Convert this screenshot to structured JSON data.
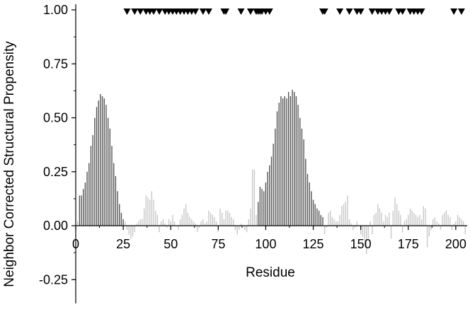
{
  "chart_data": {
    "type": "bar",
    "title": "",
    "xlabel": "Residue",
    "ylabel": "Neighbor Corrected Structural Propensity",
    "xlim": [
      0,
      206
    ],
    "ylim": [
      -0.36,
      1.0
    ],
    "x_ticks": [
      0,
      25,
      50,
      75,
      100,
      125,
      150,
      175,
      200
    ],
    "y_ticks": [
      -0.25,
      0.0,
      0.25,
      0.5,
      0.75,
      1.0
    ],
    "x_tick_labels": [
      "0",
      "25",
      "50",
      "75",
      "100",
      "125",
      "150",
      "175",
      "200"
    ],
    "y_tick_labels": [
      "-0.25",
      "0.00",
      "0.25",
      "0.50",
      "0.75",
      "1.00"
    ],
    "grid": false,
    "legend": "none",
    "colors": {
      "helix": "#555555",
      "other": "#c8c8c8",
      "marker": "#000000"
    },
    "series": [
      {
        "color": "#555555",
        "x": [
          2,
          3,
          4,
          5,
          6,
          7,
          8,
          9,
          10,
          11,
          12,
          13,
          14,
          15,
          16,
          17,
          18,
          19,
          20,
          21,
          22,
          23,
          24,
          25,
          96,
          97,
          98,
          99,
          100,
          101,
          102,
          103,
          104,
          105,
          106,
          107,
          108,
          109,
          110,
          111,
          112,
          113,
          114,
          115,
          116,
          117,
          118,
          119,
          120,
          121,
          122,
          123,
          124,
          125,
          126,
          127,
          128,
          129,
          130
        ],
        "values": [
          0.14,
          0.14,
          0.17,
          0.2,
          0.25,
          0.29,
          0.37,
          0.42,
          0.5,
          0.55,
          0.58,
          0.61,
          0.6,
          0.59,
          0.56,
          0.5,
          0.45,
          0.37,
          0.29,
          0.23,
          0.16,
          0.1,
          0.06,
          0.03,
          0.11,
          0.18,
          0.17,
          0.16,
          0.2,
          0.25,
          0.28,
          0.32,
          0.38,
          0.45,
          0.53,
          0.57,
          0.6,
          0.59,
          0.6,
          0.59,
          0.62,
          0.6,
          0.63,
          0.62,
          0.6,
          0.56,
          0.5,
          0.45,
          0.4,
          0.31,
          0.24,
          0.2,
          0.16,
          0.12,
          0.1,
          0.08,
          0.07,
          0.05,
          0.04
        ]
      },
      {
        "color": "#c8c8c8",
        "x": [
          1,
          26,
          27,
          28,
          29,
          30,
          31,
          32,
          33,
          34,
          35,
          36,
          37,
          38,
          39,
          40,
          41,
          42,
          43,
          44,
          45,
          46,
          47,
          48,
          49,
          50,
          51,
          52,
          53,
          54,
          55,
          56,
          57,
          58,
          59,
          60,
          61,
          62,
          63,
          64,
          65,
          66,
          67,
          68,
          69,
          70,
          71,
          72,
          73,
          74,
          75,
          76,
          77,
          78,
          79,
          80,
          81,
          82,
          83,
          84,
          85,
          86,
          87,
          88,
          89,
          90,
          91,
          92,
          93,
          94,
          95,
          131,
          132,
          133,
          134,
          135,
          136,
          137,
          138,
          139,
          140,
          141,
          142,
          143,
          144,
          145,
          146,
          147,
          148,
          149,
          150,
          151,
          152,
          153,
          154,
          155,
          156,
          157,
          158,
          159,
          160,
          161,
          162,
          163,
          164,
          165,
          166,
          167,
          168,
          169,
          170,
          171,
          172,
          173,
          174,
          175,
          176,
          177,
          178,
          179,
          180,
          181,
          182,
          183,
          184,
          185,
          186,
          187,
          188,
          189,
          190,
          191,
          192,
          193,
          194,
          195,
          196,
          197,
          198,
          199,
          200,
          201,
          202,
          203,
          204,
          205
        ],
        "values": [
          0.02,
          0.02,
          -0.02,
          -0.04,
          -0.06,
          -0.05,
          -0.03,
          0.01,
          0.02,
          0.03,
          0.03,
          0.08,
          0.14,
          0.13,
          0.12,
          0.16,
          0.12,
          0.07,
          0.05,
          -0.03,
          0.02,
          0.03,
          0.01,
          -0.01,
          0.03,
          0.02,
          0.05,
          0.02,
          0.0,
          -0.02,
          0.03,
          0.05,
          0.08,
          0.1,
          0.06,
          0.04,
          0.03,
          0.02,
          0.01,
          -0.03,
          -0.01,
          0.02,
          0.03,
          0.01,
          0.02,
          0.07,
          0.06,
          0.05,
          0.04,
          0.02,
          -0.03,
          0.08,
          0.06,
          0.03,
          0.07,
          0.07,
          0.06,
          0.04,
          0.03,
          -0.02,
          -0.04,
          -0.02,
          0.01,
          0.0,
          -0.02,
          -0.03,
          0.03,
          0.08,
          0.26,
          0.26,
          0.05,
          -0.04,
          -0.01,
          0.06,
          0.07,
          0.04,
          0.03,
          0.02,
          0.02,
          0.05,
          0.09,
          0.1,
          0.11,
          0.14,
          0.03,
          0.01,
          -0.02,
          -0.01,
          0.02,
          0.0,
          -0.04,
          -0.05,
          -0.07,
          -0.13,
          -0.06,
          0.02,
          -0.04,
          0.05,
          0.06,
          0.1,
          0.08,
          0.06,
          0.02,
          0.05,
          0.04,
          0.06,
          -0.06,
          0.07,
          0.13,
          0.1,
          0.07,
          0.05,
          -0.03,
          0.02,
          0.03,
          0.05,
          0.08,
          0.07,
          0.06,
          0.05,
          0.04,
          0.05,
          0.03,
          0.09,
          0.08,
          -0.1,
          -0.05,
          -0.02,
          0.03,
          0.04,
          0.02,
          0.01,
          -0.02,
          0.05,
          0.06,
          0.07,
          0.05,
          0.04,
          -0.02,
          0.01,
          0.02,
          0.05,
          0.04,
          0.03,
          0.02,
          -0.04
        ]
      }
    ],
    "markers": {
      "y": 1.0,
      "symbol": "down-triangle",
      "x": [
        27,
        31,
        34,
        37,
        39,
        41,
        44,
        47,
        49,
        51,
        53,
        55,
        57,
        59,
        61,
        63,
        67,
        70,
        78,
        79,
        87,
        92,
        95,
        96,
        97,
        98,
        100,
        102,
        130,
        131,
        139,
        144,
        148,
        150,
        156,
        159,
        161,
        163,
        165,
        170,
        172,
        176,
        178,
        180,
        182,
        199,
        203
      ]
    }
  }
}
